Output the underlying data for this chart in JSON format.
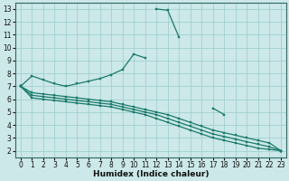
{
  "xlabel": "Humidex (Indice chaleur)",
  "bg_color": "#cce8e8",
  "grid_color": "#99cccc",
  "line_color": "#1a7a6a",
  "xlim": [
    -0.5,
    23.5
  ],
  "ylim": [
    1.5,
    13.5
  ],
  "xticks": [
    0,
    1,
    2,
    3,
    4,
    5,
    6,
    7,
    8,
    9,
    10,
    11,
    12,
    13,
    14,
    15,
    16,
    17,
    18,
    19,
    20,
    21,
    22,
    23
  ],
  "yticks": [
    2,
    3,
    4,
    5,
    6,
    7,
    8,
    9,
    10,
    11,
    12,
    13
  ],
  "series": [
    {
      "x": [
        0,
        1,
        2,
        3,
        4,
        5,
        6,
        7,
        8,
        9,
        10,
        11,
        12,
        13,
        14,
        15,
        16,
        17,
        18,
        19,
        20,
        21,
        22,
        23
      ],
      "y": [
        7.0,
        7.8,
        7.5,
        7.2,
        7.0,
        7.2,
        7.4,
        7.6,
        7.9,
        8.3,
        9.5,
        9.2,
        null,
        null,
        null,
        null,
        null,
        null,
        null,
        null,
        null,
        null,
        null,
        null
      ]
    },
    {
      "x": [
        0,
        1,
        2,
        3,
        4,
        5,
        6,
        7,
        8,
        9,
        10,
        11,
        12,
        13,
        14,
        15,
        16,
        17,
        18,
        19,
        20,
        21,
        22,
        23
      ],
      "y": [
        7.0,
        null,
        null,
        null,
        null,
        null,
        null,
        7.0,
        null,
        null,
        null,
        null,
        13.0,
        12.9,
        10.8,
        null,
        null,
        5.3,
        4.8,
        null,
        null,
        null,
        null,
        2.0
      ]
    },
    {
      "x": [
        0,
        1,
        2,
        3,
        4,
        5,
        6,
        7,
        8,
        9,
        10,
        11,
        12,
        13,
        14,
        15,
        16,
        17,
        18,
        19,
        20,
        21,
        22,
        23
      ],
      "y": [
        7.0,
        6.5,
        6.4,
        6.3,
        6.2,
        6.1,
        6.0,
        5.9,
        5.8,
        5.6,
        5.4,
        5.2,
        5.0,
        4.8,
        4.5,
        4.2,
        3.9,
        3.6,
        3.4,
        3.2,
        3.0,
        2.8,
        2.6,
        2.0
      ]
    },
    {
      "x": [
        0,
        1,
        2,
        3,
        4,
        5,
        6,
        7,
        8,
        9,
        10,
        11,
        12,
        13,
        14,
        15,
        16,
        17,
        18,
        19,
        20,
        21,
        22,
        23
      ],
      "y": [
        7.0,
        6.3,
        6.2,
        6.1,
        6.0,
        5.9,
        5.8,
        5.7,
        5.6,
        5.4,
        5.2,
        5.0,
        4.8,
        4.5,
        4.2,
        3.9,
        3.6,
        3.3,
        3.1,
        2.9,
        2.7,
        2.5,
        2.3,
        2.0
      ]
    },
    {
      "x": [
        0,
        1,
        2,
        3,
        4,
        5,
        6,
        7,
        8,
        9,
        10,
        11,
        12,
        13,
        14,
        15,
        16,
        17,
        18,
        19,
        20,
        21,
        22,
        23
      ],
      "y": [
        7.0,
        6.1,
        6.0,
        5.9,
        5.8,
        5.7,
        5.6,
        5.5,
        5.4,
        5.2,
        5.0,
        4.8,
        4.5,
        4.2,
        3.9,
        3.6,
        3.3,
        3.0,
        2.8,
        2.6,
        2.4,
        2.2,
        2.1,
        2.0
      ]
    }
  ]
}
